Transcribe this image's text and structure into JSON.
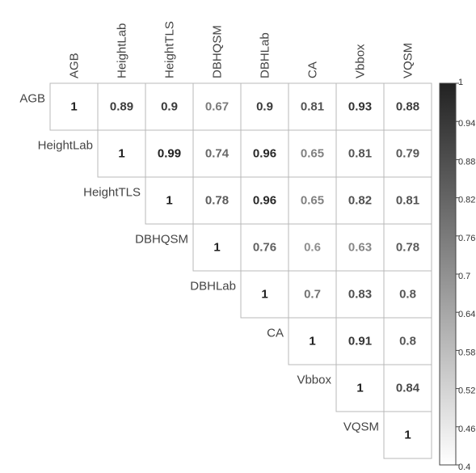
{
  "chart_data": {
    "type": "heatmap",
    "variables": [
      "AGB",
      "HeightLab",
      "HeightTLS",
      "DBHQSM",
      "DBHLab",
      "CA",
      "Vbbox",
      "VQSM"
    ],
    "matrix_upper": [
      [
        "1",
        "0.89",
        "0.9",
        "0.67",
        "0.9",
        "0.81",
        "0.93",
        "0.88"
      ],
      [
        "1",
        "0.99",
        "0.74",
        "0.96",
        "0.65",
        "0.81",
        "0.79"
      ],
      [
        "1",
        "0.78",
        "0.96",
        "0.65",
        "0.82",
        "0.81"
      ],
      [
        "1",
        "0.76",
        "0.6",
        "0.63",
        "0.78"
      ],
      [
        "1",
        "0.7",
        "0.83",
        "0.8"
      ],
      [
        "1",
        "0.91",
        "0.8"
      ],
      [
        "1",
        "0.84"
      ],
      [
        "1"
      ]
    ],
    "colorbar": {
      "min": 0.4,
      "max": 1,
      "ticks": [
        "1",
        "0.94",
        "0.88",
        "0.82",
        "0.76",
        "0.7",
        "0.64",
        "0.58",
        "0.52",
        "0.46",
        "0.4"
      ],
      "low_color": "#ffffff",
      "high_color": "#222222"
    }
  }
}
